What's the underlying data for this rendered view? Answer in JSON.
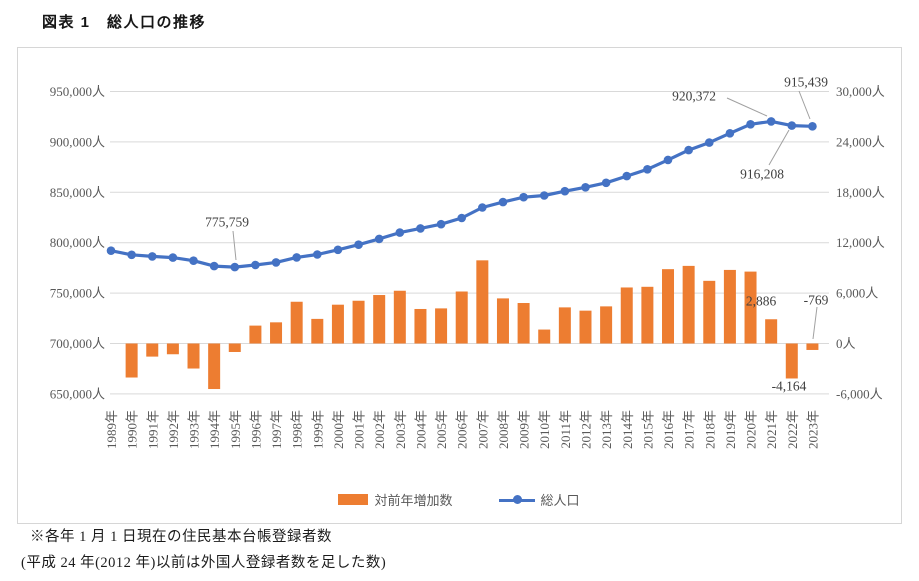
{
  "page": {
    "title": "図表 1　総人口の推移",
    "footnote_line1": "※各年 1 月 1 日現在の住民基本台帳登録者数",
    "footnote_line2": "(平成 24 年(2012 年)以前は外国人登録者数を足した数)"
  },
  "legend": {
    "bar_label": "対前年増加数",
    "line_label": "総人口"
  },
  "colors": {
    "bar": "#ED7D31",
    "line": "#4472C4",
    "grid": "#D9D9D9",
    "axis_text": "#595959",
    "annotation_text": "#3F3F3F",
    "leader_line": "#A0A0A0",
    "chart_border": "#D6D6D6"
  },
  "chart_data": {
    "type": "combo bar+line",
    "grid": true,
    "legend_position": "bottom",
    "categories": [
      "1989年",
      "1990年",
      "1991年",
      "1992年",
      "1993年",
      "1994年",
      "1995年",
      "1996年",
      "1997年",
      "1998年",
      "1999年",
      "2000年",
      "2001年",
      "2002年",
      "2003年",
      "2004年",
      "2005年",
      "2006年",
      "2007年",
      "2008年",
      "2009年",
      "2010年",
      "2011年",
      "2012年",
      "2013年",
      "2014年",
      "2015年",
      "2016年",
      "2017年",
      "2018年",
      "2019年",
      "2020年",
      "2021年",
      "2022年",
      "2023年"
    ],
    "series": [
      {
        "name": "対前年増加数",
        "type": "bar",
        "axis": "right",
        "color": "#ED7D31",
        "values": [
          null,
          -4050,
          -1560,
          -1280,
          -2980,
          -5420,
          -1010,
          2130,
          2520,
          4970,
          2930,
          4620,
          5090,
          5770,
          6280,
          4110,
          4180,
          6190,
          9900,
          5370,
          4820,
          1660,
          4300,
          3910,
          4420,
          6670,
          6750,
          8850,
          9240,
          7460,
          8760,
          8560,
          2886,
          -4164,
          -769
        ]
      },
      {
        "name": "総人口",
        "type": "line",
        "axis": "left",
        "color": "#4472C4",
        "values": [
          792059,
          788009,
          786449,
          785169,
          782189,
          776769,
          775759,
          777889,
          780409,
          785379,
          788309,
          792929,
          798019,
          803789,
          810069,
          814179,
          818359,
          824549,
          834949,
          840319,
          845139,
          846799,
          851099,
          855009,
          859429,
          866099,
          872849,
          882149,
          891849,
          899309,
          908509,
          917486,
          920372,
          916208,
          915439
        ]
      }
    ],
    "left_axis": {
      "min": 650000,
      "max": 950000,
      "step": 50000,
      "tick_labels": [
        "950,000人",
        "900,000人",
        "850,000人",
        "800,000人",
        "750,000人",
        "700,000人",
        "650,000人"
      ]
    },
    "right_axis": {
      "min": -6000,
      "max": 30000,
      "step": 6000,
      "tick_labels": [
        "30,000人",
        "24,000人",
        "18,000人",
        "12,000人",
        "6,000人",
        "0人",
        "-6,000人"
      ]
    },
    "annotations": [
      {
        "text": "775,759",
        "target": "総人口 1995年"
      },
      {
        "text": "920,372",
        "target": "総人口 2021年"
      },
      {
        "text": "915,439",
        "target": "総人口 2023年"
      },
      {
        "text": "916,208",
        "target": "総人口 2022年"
      },
      {
        "text": "2,886",
        "target": "対前年増加数 2021年"
      },
      {
        "text": "-769",
        "target": "対前年増加数 2023年"
      },
      {
        "text": "-4,164",
        "target": "対前年増加数 2022年"
      }
    ]
  }
}
